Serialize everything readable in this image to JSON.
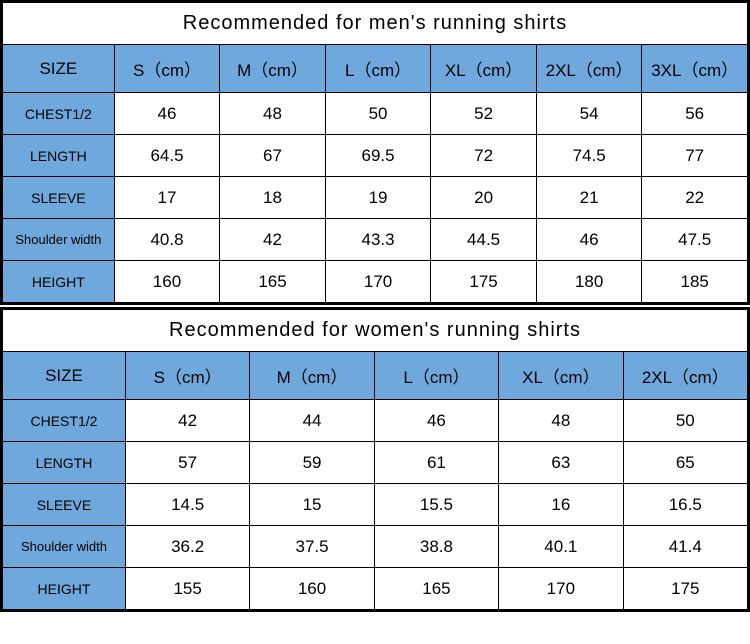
{
  "colors": {
    "header_bg": "#6fa8dc",
    "border": "#000000",
    "bg": "#ffffff",
    "text": "#000000"
  },
  "typography": {
    "title_fontsize": 20,
    "header_fontsize": 17,
    "cell_fontsize": 17,
    "rowlabel_fontsize": 14
  },
  "men_table": {
    "type": "table",
    "title": "Recommended  for  men's  running  shirts",
    "col_label": "SIZE",
    "columns": [
      "S（cm）",
      "M（cm）",
      "L（cm）",
      "XL（cm）",
      "2XL（cm）",
      "3XL（cm）"
    ],
    "col_widths_pct": [
      15,
      14.17,
      14.17,
      14.17,
      14.17,
      14.17,
      14.17
    ],
    "rows": [
      {
        "label": "CHEST1/2",
        "small": false,
        "values": [
          "46",
          "48",
          "50",
          "52",
          "54",
          "56"
        ]
      },
      {
        "label": "LENGTH",
        "small": false,
        "values": [
          "64.5",
          "67",
          "69.5",
          "72",
          "74.5",
          "77"
        ]
      },
      {
        "label": "SLEEVE",
        "small": false,
        "values": [
          "17",
          "18",
          "19",
          "20",
          "21",
          "22"
        ]
      },
      {
        "label": "Shoulder width",
        "small": true,
        "values": [
          "40.8",
          "42",
          "43.3",
          "44.5",
          "46",
          "47.5"
        ]
      },
      {
        "label": "HEIGHT",
        "small": false,
        "values": [
          "160",
          "165",
          "170",
          "175",
          "180",
          "185"
        ]
      }
    ]
  },
  "women_table": {
    "type": "table",
    "title": "Recommended  for  women's  running  shirts",
    "col_label": "SIZE",
    "columns": [
      "S（cm）",
      "M（cm）",
      "L（cm）",
      "XL（cm）",
      "2XL（cm）"
    ],
    "col_widths_pct": [
      16.5,
      16.7,
      16.7,
      16.7,
      16.7,
      16.7
    ],
    "rows": [
      {
        "label": "CHEST1/2",
        "small": false,
        "values": [
          "42",
          "44",
          "46",
          "48",
          "50"
        ]
      },
      {
        "label": "LENGTH",
        "small": false,
        "values": [
          "57",
          "59",
          "61",
          "63",
          "65"
        ]
      },
      {
        "label": "SLEEVE",
        "small": false,
        "values": [
          "14.5",
          "15",
          "15.5",
          "16",
          "16.5"
        ]
      },
      {
        "label": "Shoulder width",
        "small": true,
        "values": [
          "36.2",
          "37.5",
          "38.8",
          "40.1",
          "41.4"
        ]
      },
      {
        "label": "HEIGHT",
        "small": false,
        "values": [
          "155",
          "160",
          "165",
          "170",
          "175"
        ]
      }
    ]
  }
}
